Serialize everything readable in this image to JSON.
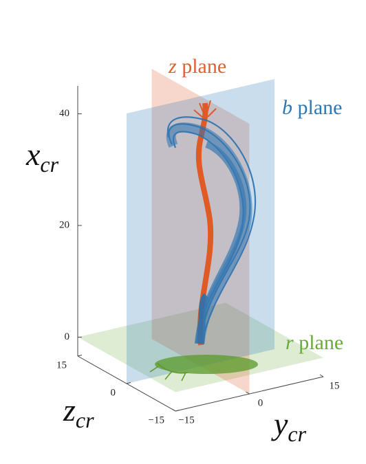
{
  "chart_data": {
    "type": "3d-trajectory",
    "x_axis": {
      "symbol": "x",
      "sub": "cr"
    },
    "y_axis": {
      "symbol": "y",
      "sub": "cr"
    },
    "z_axis": {
      "symbol": "z",
      "sub": "cr"
    },
    "xlim": [
      -3.4,
      45
    ],
    "ylim": [
      -15,
      15
    ],
    "zlim": [
      -15,
      15
    ],
    "xticks": [
      0,
      20,
      40
    ],
    "yticks": [
      {
        "value": -15,
        "label": "−15"
      },
      0,
      15
    ],
    "zticks": [
      {
        "value": -15,
        "label": "−15"
      },
      0,
      15
    ],
    "planes": [
      {
        "symbol": "z",
        "word": "plane",
        "color": "#e06030"
      },
      {
        "symbol": "b",
        "word": "plane",
        "color": "#2a78b8"
      },
      {
        "symbol": "r",
        "word": "plane",
        "color": "#6aaa3a"
      }
    ]
  }
}
